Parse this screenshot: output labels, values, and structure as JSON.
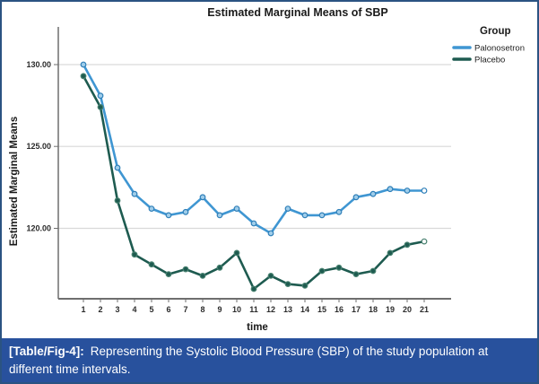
{
  "figure": {
    "border_color": "#2b5382",
    "background": "#ffffff"
  },
  "chart_data": {
    "type": "line",
    "title": "Estimated Marginal Means of SBP",
    "xlabel": "time",
    "ylabel": "Estimated Marginal Means",
    "legend_title": "Group",
    "legend_position": "top-right",
    "grid": "horizontal-only",
    "gridline_color": "#d9d9d9",
    "axis_color": "#6e6e6e",
    "x": [
      1,
      2,
      3,
      4,
      5,
      6,
      7,
      8,
      9,
      10,
      11,
      12,
      13,
      14,
      15,
      16,
      17,
      18,
      19,
      20,
      21
    ],
    "ylim": [
      115.7,
      132.3
    ],
    "yticks": [
      120,
      125,
      130
    ],
    "ytick_labels": [
      "120.00",
      "125.00",
      "130.00"
    ],
    "series": [
      {
        "name": "Palonosetron",
        "color": "#3f96d2",
        "marker_fill": "#9fcdea",
        "marker_stroke": "#2f7fb8",
        "values": [
          130.0,
          128.1,
          123.7,
          122.1,
          121.2,
          120.8,
          121.0,
          121.9,
          120.8,
          121.2,
          120.3,
          119.7,
          121.2,
          120.8,
          120.8,
          121.0,
          121.9,
          122.1,
          122.4,
          122.3,
          122.3
        ]
      },
      {
        "name": "Placebo",
        "color": "#1e5b50",
        "marker_fill": "#1e5b50",
        "marker_stroke": "#47806f",
        "values": [
          129.3,
          127.4,
          121.7,
          118.4,
          117.8,
          117.2,
          117.5,
          117.1,
          117.6,
          118.5,
          116.3,
          117.1,
          116.6,
          116.5,
          117.4,
          117.6,
          117.2,
          117.4,
          118.5,
          119.0,
          119.2
        ]
      }
    ]
  },
  "caption": {
    "label": "[Table/Fig-4]:",
    "text": "Representing the Systolic Blood Pressure (SBP) of the study population at different time intervals.",
    "bg_color": "#28519D",
    "text_color": "#ffffff"
  }
}
